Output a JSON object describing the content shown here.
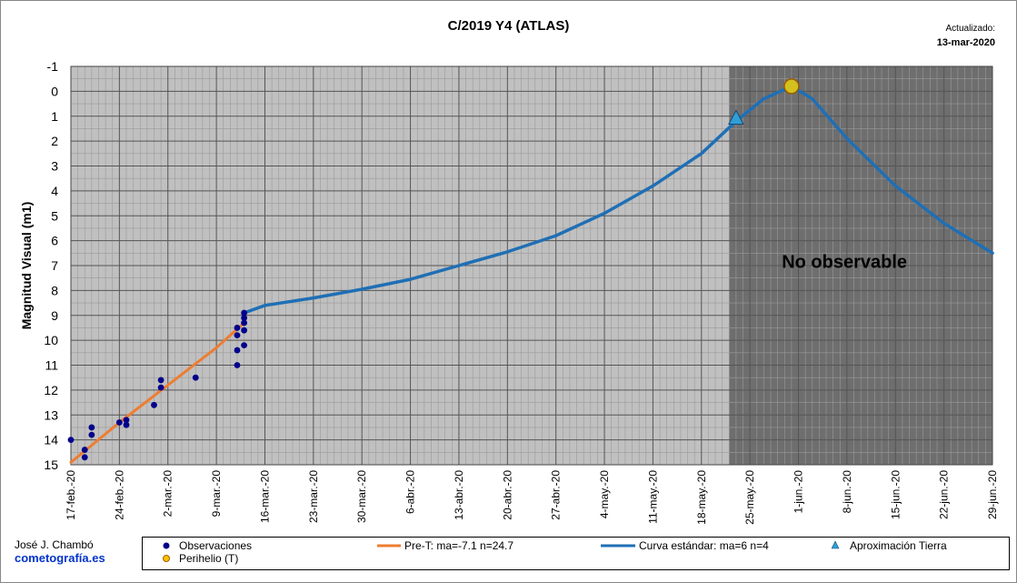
{
  "chart_data": {
    "type": "line",
    "title": "C/2019 Y4 (ATLAS)",
    "updated_label": "Actualizado:",
    "updated_date": "13-mar-2020",
    "ylabel": "Magnitud Visual (m1)",
    "xlabel": "",
    "y_reversed": true,
    "ylim": [
      -1,
      15
    ],
    "y_ticks": [
      -1,
      0,
      1,
      2,
      3,
      4,
      5,
      6,
      7,
      8,
      9,
      10,
      11,
      12,
      13,
      14,
      15
    ],
    "x_start": "2020-02-17",
    "x_end": "2020-06-29",
    "x_tick_labels": [
      "17-feb.-20",
      "24-feb.-20",
      "2-mar.-20",
      "9-mar.-20",
      "16-mar.-20",
      "23-mar.-20",
      "30-mar.-20",
      "6-abr.-20",
      "13-abr.-20",
      "20-abr.-20",
      "27-abr.-20",
      "4-may.-20",
      "11-may.-20",
      "18-may.-20",
      "25-may.-20",
      "1-jun.-20",
      "8-jun.-20",
      "15-jun.-20",
      "22-jun.-20",
      "29-jun.-20"
    ],
    "grid": true,
    "shaded_region": {
      "from": "2020-05-22",
      "to": "2020-06-29",
      "label": "No observable"
    },
    "series": [
      {
        "name": "Observaciones",
        "type": "scatter",
        "color": "#00008b",
        "points": [
          [
            "2020-02-17",
            14.0
          ],
          [
            "2020-02-19",
            14.4
          ],
          [
            "2020-02-19",
            14.7
          ],
          [
            "2020-02-20",
            13.5
          ],
          [
            "2020-02-20",
            13.8
          ],
          [
            "2020-02-24",
            13.3
          ],
          [
            "2020-02-25",
            13.2
          ],
          [
            "2020-02-25",
            13.4
          ],
          [
            "2020-02-29",
            12.6
          ],
          [
            "2020-03-01",
            11.6
          ],
          [
            "2020-03-01",
            11.9
          ],
          [
            "2020-03-06",
            11.5
          ],
          [
            "2020-03-12",
            9.5
          ],
          [
            "2020-03-12",
            9.8
          ],
          [
            "2020-03-12",
            10.4
          ],
          [
            "2020-03-12",
            11.0
          ],
          [
            "2020-03-13",
            8.9
          ],
          [
            "2020-03-13",
            9.1
          ],
          [
            "2020-03-13",
            9.3
          ],
          [
            "2020-03-13",
            9.6
          ],
          [
            "2020-03-13",
            10.2
          ]
        ]
      },
      {
        "name": "Pre-T: ma=-7.1 n=24.7",
        "type": "line",
        "color": "#ed7d31",
        "points": [
          [
            "2020-02-17",
            14.9
          ],
          [
            "2020-02-24",
            13.3
          ],
          [
            "2020-03-02",
            11.8
          ],
          [
            "2020-03-09",
            10.3
          ],
          [
            "2020-03-13",
            9.3
          ]
        ]
      },
      {
        "name": "Curva estándar: ma=6 n=4",
        "type": "line",
        "color": "#1f6fb5",
        "points": [
          [
            "2020-03-13",
            8.9
          ],
          [
            "2020-03-16",
            8.6
          ],
          [
            "2020-03-23",
            8.3
          ],
          [
            "2020-03-30",
            7.95
          ],
          [
            "2020-04-06",
            7.55
          ],
          [
            "2020-04-13",
            7.0
          ],
          [
            "2020-04-20",
            6.45
          ],
          [
            "2020-04-27",
            5.8
          ],
          [
            "2020-05-04",
            4.9
          ],
          [
            "2020-05-11",
            3.8
          ],
          [
            "2020-05-18",
            2.5
          ],
          [
            "2020-05-23",
            1.2
          ],
          [
            "2020-05-27",
            0.3
          ],
          [
            "2020-05-31",
            -0.2
          ],
          [
            "2020-06-03",
            0.3
          ],
          [
            "2020-06-08",
            1.9
          ],
          [
            "2020-06-15",
            3.8
          ],
          [
            "2020-06-22",
            5.3
          ],
          [
            "2020-06-29",
            6.5
          ]
        ]
      },
      {
        "name": "Aproximación Tierra",
        "type": "marker",
        "color": "#2e9fd6",
        "points": [
          [
            "2020-05-23",
            1.1
          ]
        ]
      },
      {
        "name": "Perihelio (T)",
        "type": "marker",
        "color": "#d4c01e",
        "points": [
          [
            "2020-05-31",
            -0.2
          ]
        ]
      }
    ]
  },
  "credits": {
    "author": "José J. Chambó",
    "site": "cometografía.es"
  }
}
